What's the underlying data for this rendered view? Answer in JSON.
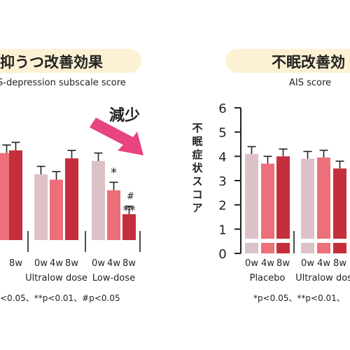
{
  "colors": {
    "pill": "#fdf1d3",
    "bar_0w": "#dcc2c6",
    "bar_4w": "#ec6f79",
    "bar_8w": "#c52f3c",
    "arrow": "#e8447f",
    "axis": "#222222",
    "text": "#222222"
  },
  "arrow_label": "減少",
  "chart_data": [
    {
      "type": "bar",
      "title": "抑うつ改善効果",
      "subtitle": "S-depression subscale score",
      "ylabel": "",
      "x_prefix": "",
      "series_labels": [
        "0w",
        "4w",
        "8w"
      ],
      "groups": [
        {
          "label": "",
          "values": [
            null,
            3.3,
            3.4
          ],
          "errors": [
            null,
            0.3,
            0.3
          ],
          "marks": [
            null,
            null,
            null
          ]
        },
        {
          "label": "Ultralow dose",
          "values": [
            2.5,
            2.3,
            3.1
          ],
          "errors": [
            0.3,
            0.3,
            0.3
          ],
          "marks": [
            null,
            null,
            null
          ]
        },
        {
          "label": "Low-dose",
          "values": [
            3.0,
            1.9,
            1.0
          ],
          "errors": [
            0.3,
            0.3,
            0.3
          ],
          "marks": [
            null,
            "*",
            "#\n**"
          ]
        }
      ],
      "first_group_partial_label": "8w",
      "footnote": "<0.05、**p<0.01、#p<0.05"
    },
    {
      "type": "bar",
      "title": "不眠改善効",
      "subtitle": "AIS score",
      "ylabel": "不眠症状スコア",
      "ylim": [
        0,
        6
      ],
      "yticks": [
        0,
        1,
        2,
        3,
        4,
        5,
        6
      ],
      "series_labels": [
        "0w",
        "4w",
        "8w"
      ],
      "groups": [
        {
          "label": "Placebo",
          "values": [
            4.1,
            3.7,
            4.0
          ],
          "errors": [
            0.3,
            0.3,
            0.3
          ]
        },
        {
          "label": "Ultralow dos",
          "values": [
            3.9,
            3.95,
            3.5
          ],
          "errors": [
            0.3,
            0.3,
            0.3
          ]
        }
      ],
      "footnote": "*p<0.05、**p<0.01、"
    }
  ]
}
